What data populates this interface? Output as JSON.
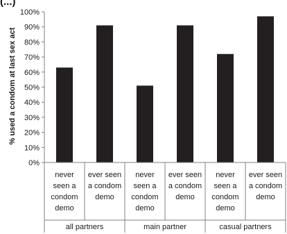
{
  "panel_label": "(...)",
  "chart_data": {
    "type": "bar",
    "ylabel": "% used a condom at last sex act",
    "ylim": [
      0,
      100
    ],
    "yticks": [
      "0%",
      "10%",
      "20%",
      "30%",
      "40%",
      "50%",
      "60%",
      "70%",
      "80%",
      "90%",
      "100%"
    ],
    "ytick_values": [
      0,
      10,
      20,
      30,
      40,
      50,
      60,
      70,
      80,
      90,
      100
    ],
    "grid": false,
    "legend": "none",
    "bar_color": "#231f20",
    "groups": [
      {
        "label": "all partners",
        "bars": [
          {
            "label_lines": [
              "never",
              "seen a",
              "condom",
              "demo"
            ],
            "value": 63
          },
          {
            "label_lines": [
              "ever seen",
              "a condom",
              "demo"
            ],
            "value": 91
          }
        ]
      },
      {
        "label": "main partner",
        "bars": [
          {
            "label_lines": [
              "never",
              "seen a",
              "condom",
              "demo"
            ],
            "value": 51
          },
          {
            "label_lines": [
              "ever seen",
              "a condom",
              "demo"
            ],
            "value": 91
          }
        ]
      },
      {
        "label": "casual partners",
        "bars": [
          {
            "label_lines": [
              "never",
              "seen a",
              "condom",
              "demo"
            ],
            "value": 72
          },
          {
            "label_lines": [
              "ever seen",
              "a condom",
              "demo"
            ],
            "value": 97
          }
        ]
      }
    ]
  }
}
